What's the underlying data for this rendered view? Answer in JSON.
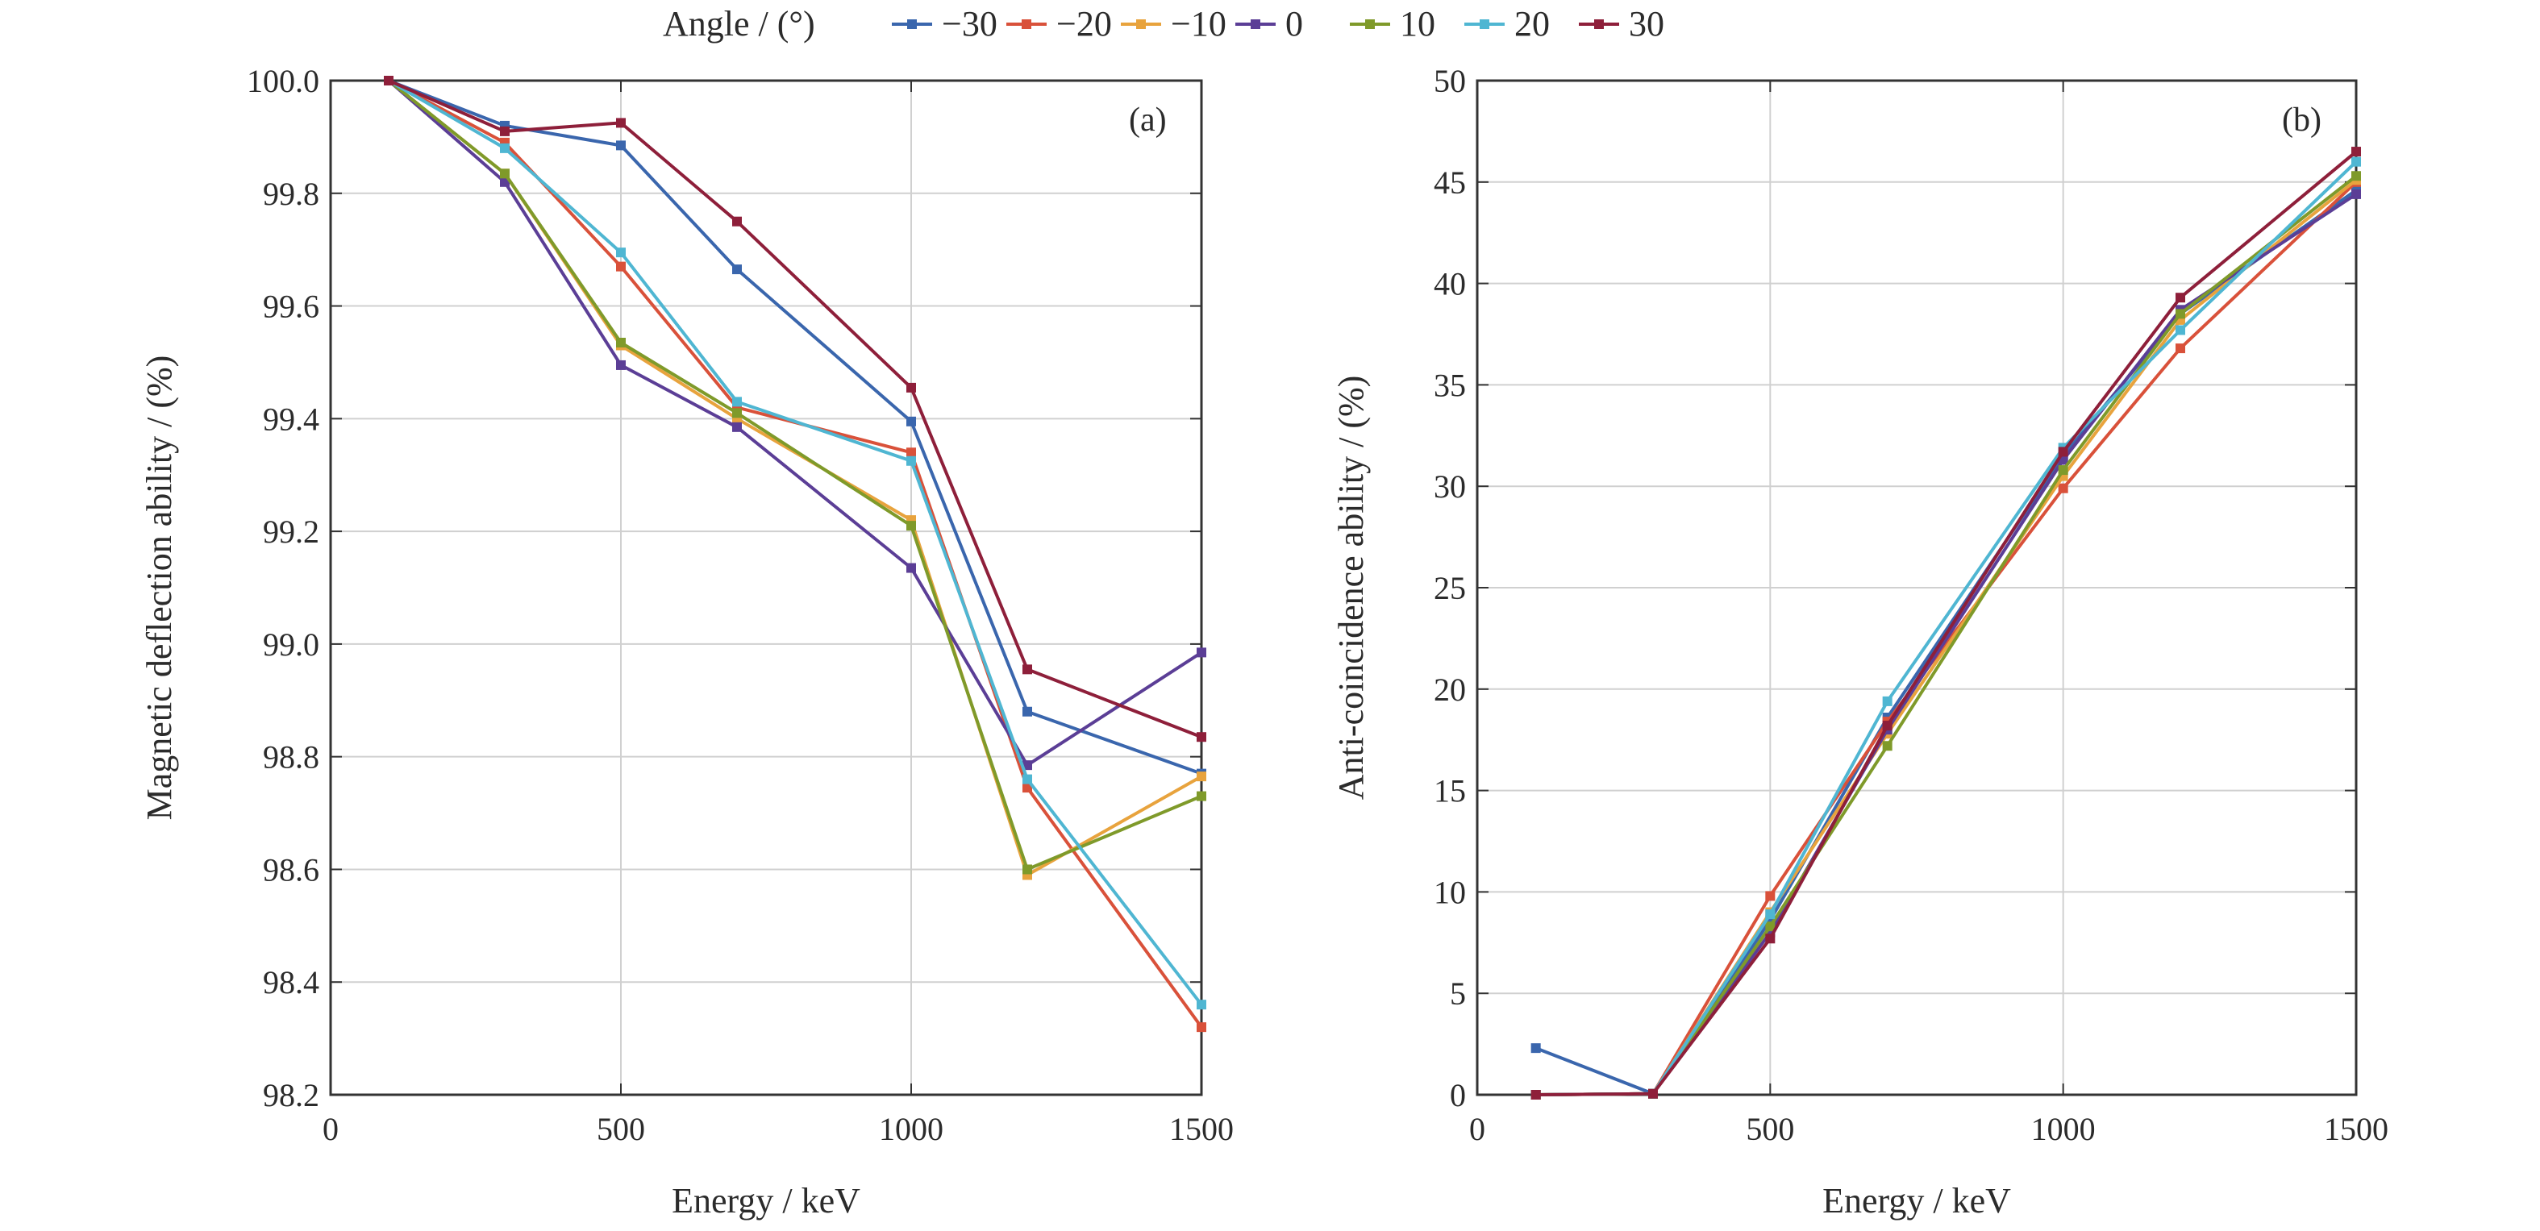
{
  "legend": {
    "title": "Angle / (°)",
    "placement": "top-center"
  },
  "colors": {
    "-30": "#3a66ad",
    "-20": "#d9513a",
    "-10": "#e8a33d",
    "0": "#5b3e96",
    "10": "#7f9a2a",
    "20": "#4fb6d2",
    "30": "#8e1f3a"
  },
  "chart_data": [
    {
      "type": "line",
      "panel_label": "(a)",
      "xlabel": "Energy / keV",
      "ylabel": "Magnetic deflection ability / (%)",
      "xlim": [
        0,
        1500
      ],
      "ylim": [
        98.2,
        100.0
      ],
      "xticks": [
        0,
        500,
        1000,
        1500
      ],
      "yticks": [
        98.2,
        98.4,
        98.6,
        98.8,
        99.0,
        99.2,
        99.4,
        99.6,
        99.8,
        100.0
      ],
      "ytick_labels": [
        "98.2",
        "98.4",
        "98.6",
        "98.8",
        "99.0",
        "99.2",
        "99.4",
        "99.6",
        "99.8",
        "100.0"
      ],
      "grid": true,
      "x": [
        100,
        300,
        500,
        700,
        1000,
        1200,
        1500
      ],
      "series": [
        {
          "name": "−30",
          "key": "-30",
          "values": [
            100.0,
            99.92,
            99.885,
            99.665,
            99.395,
            98.88,
            98.77
          ]
        },
        {
          "name": "−20",
          "key": "-20",
          "values": [
            100.0,
            99.89,
            99.67,
            99.42,
            99.34,
            98.745,
            98.32
          ]
        },
        {
          "name": "−10",
          "key": "-10",
          "values": [
            100.0,
            99.835,
            99.53,
            99.4,
            99.22,
            98.59,
            98.765
          ]
        },
        {
          "name": "0",
          "key": "0",
          "values": [
            100.0,
            99.82,
            99.495,
            99.385,
            99.135,
            98.785,
            98.985
          ]
        },
        {
          "name": "10",
          "key": "10",
          "values": [
            100.0,
            99.835,
            99.535,
            99.41,
            99.21,
            98.6,
            98.73
          ]
        },
        {
          "name": "20",
          "key": "20",
          "values": [
            100.0,
            99.88,
            99.695,
            99.43,
            99.325,
            98.76,
            98.36
          ]
        },
        {
          "name": "30",
          "key": "30",
          "values": [
            100.0,
            99.91,
            99.925,
            99.75,
            99.455,
            98.955,
            98.835
          ]
        }
      ]
    },
    {
      "type": "line",
      "panel_label": "(b)",
      "xlabel": "Energy / keV",
      "ylabel": "Anti-coincidence ability / (%)",
      "xlim": [
        0,
        1500
      ],
      "ylim": [
        0,
        50
      ],
      "xticks": [
        0,
        500,
        1000,
        1500
      ],
      "yticks": [
        0,
        5,
        10,
        15,
        20,
        25,
        30,
        35,
        40,
        45,
        50
      ],
      "ytick_labels": [
        "0",
        "5",
        "10",
        "15",
        "20",
        "25",
        "30",
        "35",
        "40",
        "45",
        "50"
      ],
      "grid": true,
      "x": [
        100,
        300,
        500,
        700,
        1000,
        1200,
        1500
      ],
      "series": [
        {
          "name": "−30",
          "key": "-30",
          "values": [
            2.3,
            0.05,
            8.6,
            18.6,
            31.5,
            38.5,
            44.6
          ]
        },
        {
          "name": "−20",
          "key": "-20",
          "values": [
            0.0,
            0.05,
            9.8,
            18.4,
            29.9,
            36.8,
            45.0
          ]
        },
        {
          "name": "−10",
          "key": "-10",
          "values": [
            0.0,
            0.05,
            9.0,
            17.8,
            30.5,
            38.2,
            45.1
          ]
        },
        {
          "name": "0",
          "key": "0",
          "values": [
            0.0,
            0.05,
            8.0,
            18.0,
            31.3,
            38.7,
            44.4
          ]
        },
        {
          "name": "10",
          "key": "10",
          "values": [
            0.0,
            0.05,
            8.3,
            17.2,
            30.8,
            38.5,
            45.3
          ]
        },
        {
          "name": "20",
          "key": "20",
          "values": [
            0.0,
            0.05,
            8.9,
            19.4,
            31.9,
            37.7,
            46.0
          ]
        },
        {
          "name": "30",
          "key": "30",
          "values": [
            0.0,
            0.05,
            7.7,
            18.2,
            31.7,
            39.3,
            46.5
          ]
        }
      ]
    }
  ]
}
